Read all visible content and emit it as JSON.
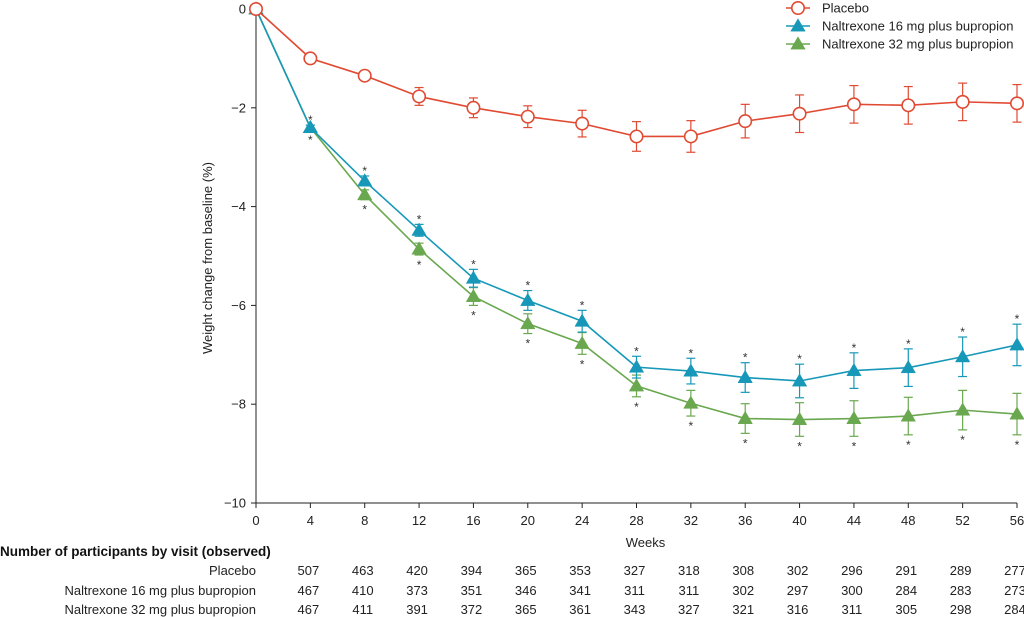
{
  "chart_data": {
    "type": "line",
    "xlabel": "Weeks",
    "ylabel": "Weight change from baseline (%)",
    "xlim": [
      0,
      56
    ],
    "ylim": [
      -10,
      0
    ],
    "x_ticks": [
      0,
      4,
      8,
      12,
      16,
      20,
      24,
      28,
      32,
      36,
      40,
      44,
      48,
      52,
      56
    ],
    "y_ticks": [
      0,
      -2,
      -4,
      -6,
      -8,
      -10
    ],
    "legend_position": "top-right",
    "x": [
      0,
      4,
      8,
      12,
      16,
      20,
      24,
      28,
      32,
      36,
      40,
      44,
      48,
      52,
      56
    ],
    "series": [
      {
        "name": "Placebo",
        "color": "#e04a32",
        "marker": "open-circle",
        "values": [
          0,
          -1.0,
          -1.35,
          -1.77,
          -2.0,
          -2.18,
          -2.32,
          -2.58,
          -2.58,
          -2.27,
          -2.12,
          -1.93,
          -1.95,
          -1.88,
          -1.91
        ],
        "error": [
          0,
          0,
          0.08,
          0.18,
          0.2,
          0.22,
          0.27,
          0.3,
          0.32,
          0.34,
          0.38,
          0.38,
          0.38,
          0.38,
          0.38
        ],
        "significance": [
          false,
          false,
          false,
          false,
          false,
          false,
          false,
          false,
          false,
          false,
          false,
          false,
          false,
          false,
          false
        ]
      },
      {
        "name": "Naltrexone 16 mg plus bupropion",
        "color": "#1798b9",
        "marker": "filled-triangle",
        "values": [
          0,
          -2.4,
          -3.48,
          -4.48,
          -5.45,
          -5.9,
          -6.32,
          -7.25,
          -7.33,
          -7.46,
          -7.53,
          -7.32,
          -7.26,
          -7.04,
          -6.8
        ],
        "error": [
          0,
          0.05,
          0.1,
          0.12,
          0.18,
          0.2,
          0.22,
          0.22,
          0.26,
          0.3,
          0.34,
          0.36,
          0.38,
          0.4,
          0.42
        ],
        "significance": [
          false,
          true,
          true,
          true,
          true,
          true,
          true,
          true,
          true,
          true,
          true,
          true,
          true,
          true,
          true
        ]
      },
      {
        "name": "Naltrexone 32 mg plus bupropion",
        "color": "#6aa84f",
        "marker": "filled-triangle",
        "values": [
          0,
          -2.4,
          -3.76,
          -4.86,
          -5.82,
          -6.37,
          -6.77,
          -7.63,
          -7.98,
          -8.29,
          -8.31,
          -8.29,
          -8.24,
          -8.12,
          -8.2
        ],
        "error": [
          0,
          0.05,
          0.1,
          0.12,
          0.18,
          0.2,
          0.22,
          0.22,
          0.26,
          0.3,
          0.34,
          0.36,
          0.38,
          0.4,
          0.42
        ],
        "significance": [
          false,
          true,
          true,
          true,
          true,
          true,
          true,
          true,
          true,
          true,
          true,
          true,
          true,
          true,
          true
        ]
      }
    ],
    "significance_marker": "*"
  },
  "participants_table": {
    "title": "Number of participants by visit (observed)",
    "rows": [
      {
        "label": "Placebo",
        "values": [
          "507",
          "463",
          "420",
          "394",
          "365",
          "353",
          "327",
          "318",
          "308",
          "302",
          "296",
          "291",
          "289",
          "277"
        ]
      },
      {
        "label": "Naltrexone 16 mg plus bupropion",
        "values": [
          "467",
          "410",
          "373",
          "351",
          "346",
          "341",
          "311",
          "311",
          "302",
          "297",
          "300",
          "284",
          "283",
          "273"
        ]
      },
      {
        "label": "Naltrexone 32 mg plus bupropion",
        "values": [
          "467",
          "411",
          "391",
          "372",
          "365",
          "361",
          "343",
          "327",
          "321",
          "316",
          "311",
          "305",
          "298",
          "284"
        ]
      }
    ]
  }
}
